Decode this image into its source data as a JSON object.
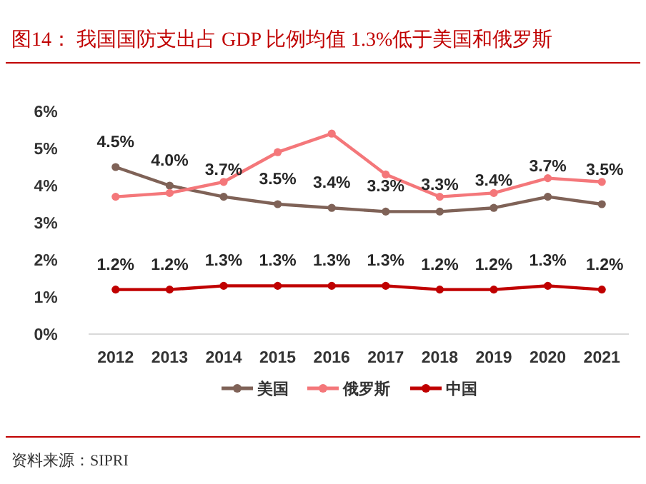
{
  "chart_data": {
    "type": "line",
    "title": "图14：  我国国防支出占 GDP 比例均值 1.3%低于美国和俄罗斯",
    "annotations": [
      "资料来源：SIPRI"
    ],
    "categories": [
      "2012",
      "2013",
      "2014",
      "2015",
      "2016",
      "2017",
      "2018",
      "2019",
      "2020",
      "2021"
    ],
    "ylim": [
      0,
      6
    ],
    "yticks": [
      {
        "value": 0,
        "label": "0%"
      },
      {
        "value": 1,
        "label": "1%"
      },
      {
        "value": 2,
        "label": "2%"
      },
      {
        "value": 3,
        "label": "3%"
      },
      {
        "value": 4,
        "label": "4%"
      },
      {
        "value": 5,
        "label": "5%"
      },
      {
        "value": 6,
        "label": "6%"
      }
    ],
    "grid": false,
    "legend": "bottom",
    "marker": "circle",
    "line_style": "solid",
    "series": [
      {
        "name": "美国",
        "color": "#7f6257",
        "values": [
          4.5,
          4.0,
          3.7,
          3.5,
          3.4,
          3.3,
          3.3,
          3.4,
          3.7,
          3.5
        ],
        "value_labels": [
          "4.5%",
          "4.0%",
          "3.7%",
          "3.5%",
          "3.4%",
          "3.3%",
          "3.3%",
          "3.4%",
          "3.7%",
          "3.5%"
        ]
      },
      {
        "name": "俄罗斯",
        "color": "#f4777a",
        "values": [
          3.7,
          3.8,
          4.1,
          4.9,
          5.4,
          4.3,
          3.7,
          3.8,
          4.2,
          4.1
        ]
      },
      {
        "name": "中国",
        "color": "#c00000",
        "values": [
          1.2,
          1.2,
          1.3,
          1.3,
          1.3,
          1.3,
          1.2,
          1.2,
          1.3,
          1.2
        ],
        "value_labels": [
          "1.2%",
          "1.2%",
          "1.3%",
          "1.3%",
          "1.3%",
          "1.3%",
          "1.2%",
          "1.2%",
          "1.3%",
          "1.2%"
        ]
      }
    ]
  }
}
